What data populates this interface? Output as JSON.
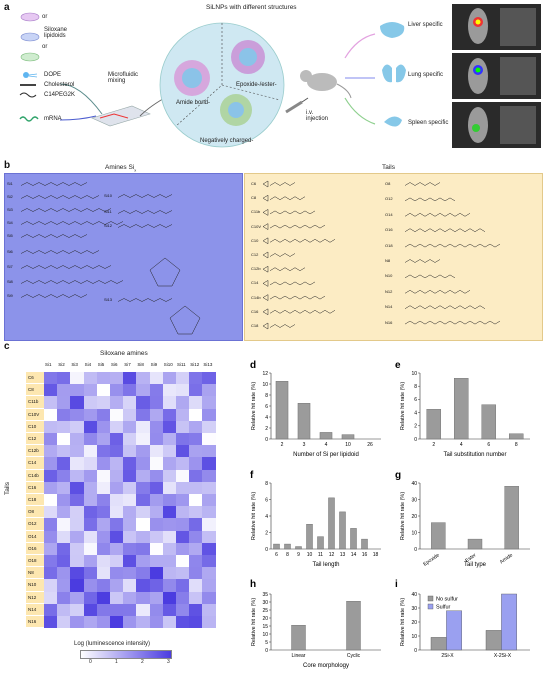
{
  "panel_a": {
    "letter": "a",
    "title": "SiLNPs with different structures",
    "legend": [
      {
        "label": "Siloxane lipidoids"
      },
      {
        "label": "DOPE"
      },
      {
        "label": "Cholesterol"
      },
      {
        "label": "C14PEG2K"
      },
      {
        "label": "mRNA"
      }
    ],
    "or_text": "or",
    "mixing_label": "Microfluidic mixing",
    "segments": [
      "Amide bond-",
      "Epoxide-/ester-",
      "Negatively charged-"
    ],
    "injection_label": "i.v. injection",
    "outcomes": [
      "Liver specific",
      "Lung specific",
      "Spleen specific"
    ]
  },
  "panel_b": {
    "letter": "b",
    "amines_title": "Amines Si",
    "amines_subscript": "x",
    "tails_title": "Tails",
    "amine_ids": [
      "Si1",
      "Si2",
      "Si3",
      "Si4",
      "Si5",
      "Si6",
      "Si7",
      "Si8",
      "Si9",
      "Si10",
      "Si11",
      "Si12",
      "Si13"
    ],
    "tails_left": [
      "C6",
      "C8",
      "C11b",
      "C10V",
      "C10",
      "C12",
      "C12b",
      "C14",
      "C14b",
      "C16",
      "C18"
    ],
    "tails_right": [
      "O8",
      "O12",
      "O14",
      "O16",
      "O18",
      "N8",
      "N10",
      "N12",
      "N14",
      "N16"
    ]
  },
  "panel_c": {
    "letter": "c",
    "title": "Siloxane amines",
    "columns": [
      "Si1",
      "Si2",
      "Si3",
      "Si4",
      "Si5",
      "Si6",
      "Si7",
      "Si8",
      "Si9",
      "Si10",
      "Si11",
      "Si12",
      "Si13"
    ],
    "rows": [
      "C6",
      "C8",
      "C11b",
      "C10V",
      "C10",
      "C12",
      "C12b",
      "C14",
      "C14b",
      "C16",
      "C18",
      "O8",
      "O12",
      "O14",
      "O16",
      "O18",
      "N8",
      "N10",
      "N12",
      "N14",
      "N16"
    ],
    "ylabel": "Tails",
    "colorbar_label": "Log (luminescence intensity)",
    "colorbar_ticks": [
      "0",
      "1",
      "2",
      "3"
    ]
  },
  "colors": {
    "amine_box": "#8c93ea",
    "tail_box": "#fcecc4",
    "heat_low": "#ffffff",
    "heat_high": "#4b3ce0",
    "bar_gray": "#9b9b9b",
    "sulfur": "#9aa0f0",
    "tail_row": "#fde7b0"
  },
  "chart_data": [
    {
      "panel": "d",
      "type": "bar",
      "categories": [
        "2",
        "3",
        "4",
        "10",
        "26"
      ],
      "values": [
        10.5,
        6.5,
        1.2,
        0.8,
        0
      ],
      "xlabel": "Number of Si per lipidoid",
      "ylabel": "Relative hit rate (%)",
      "ylim": [
        0,
        12
      ],
      "yticks": [
        "0",
        "2",
        "4",
        "6",
        "8",
        "10",
        "12"
      ]
    },
    {
      "panel": "e",
      "type": "bar",
      "categories": [
        "2",
        "4",
        "6",
        "8"
      ],
      "values": [
        4.5,
        9.2,
        5.2,
        0.8
      ],
      "xlabel": "Tail substitution number",
      "ylabel": "Relative hit rate (%)",
      "ylim": [
        0,
        10
      ],
      "yticks": [
        "0",
        "2",
        "4",
        "6",
        "8",
        "10"
      ]
    },
    {
      "panel": "f",
      "type": "bar",
      "categories": [
        "6",
        "8",
        "9",
        "10",
        "11",
        "12",
        "13",
        "14",
        "16",
        "18"
      ],
      "values": [
        0.6,
        0.6,
        0.3,
        3.0,
        1.5,
        6.2,
        4.5,
        2.5,
        1.2,
        0
      ],
      "xlabel": "Tail length",
      "ylabel": "Relative hit rate (%)",
      "ylim": [
        0,
        8
      ],
      "yticks": [
        "0",
        "2",
        "4",
        "6",
        "8"
      ]
    },
    {
      "panel": "g",
      "type": "bar",
      "categories": [
        "Epoxide",
        "Ester",
        "Amide"
      ],
      "values": [
        16,
        6,
        38
      ],
      "xlabel": "Tail type",
      "ylabel": "Relative hit rate (%)",
      "ylim": [
        0,
        40
      ],
      "yticks": [
        "0",
        "10",
        "20",
        "30",
        "40"
      ]
    },
    {
      "panel": "h",
      "type": "bar",
      "categories": [
        "Linear",
        "Cyclic"
      ],
      "values": [
        15.5,
        30.5
      ],
      "xlabel": "Core morphology",
      "ylabel": "Relative hit rate (%)",
      "ylim": [
        0,
        35
      ],
      "yticks": [
        "0",
        "5",
        "10",
        "15",
        "20",
        "25",
        "30",
        "35"
      ]
    },
    {
      "panel": "i",
      "type": "bar",
      "categories": [
        "2Si-X",
        "X-2Si-X"
      ],
      "series": [
        {
          "name": "No sulfur",
          "values": [
            9,
            14
          ]
        },
        {
          "name": "Sulfur",
          "values": [
            28,
            42
          ]
        }
      ],
      "ylabel": "Relative hit rate (%)",
      "ylim": [
        0,
        40
      ],
      "yticks": [
        "0",
        "10",
        "20",
        "30",
        "40"
      ]
    }
  ]
}
